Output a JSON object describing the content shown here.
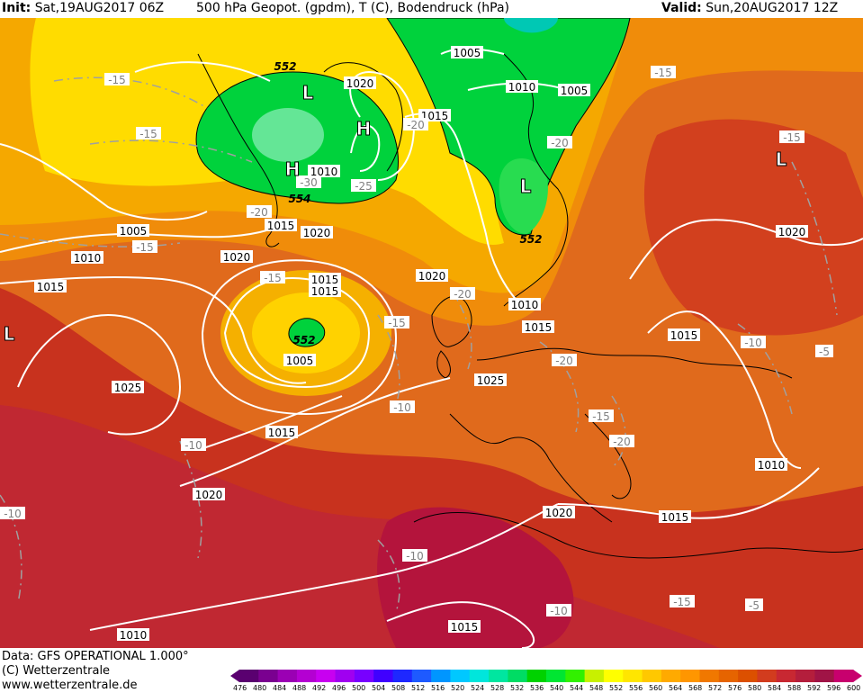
{
  "header": {
    "init_label": "Init:",
    "init_value": "Sat,19AUG2017 06Z",
    "title": "500 hPa Geopot. (gpdm), T (C), Bodendruck (hPa)",
    "valid_label": "Valid:",
    "valid_value": "Sun,20AUG2017 12Z"
  },
  "footer": {
    "data_line": "Data: GFS OPERATIONAL 1.000°",
    "copyright": "(C) Wetterzentrale",
    "website": "www.wetterzentrale.de"
  },
  "colorbar": {
    "labels": [
      "476",
      "480",
      "484",
      "488",
      "492",
      "496",
      "500",
      "504",
      "508",
      "512",
      "516",
      "520",
      "524",
      "528",
      "532",
      "536",
      "540",
      "544",
      "548",
      "552",
      "556",
      "560",
      "564",
      "568",
      "572",
      "576",
      "580",
      "584",
      "588",
      "592",
      "596",
      "600"
    ],
    "colors": [
      "#5a0070",
      "#7a0090",
      "#9b00b4",
      "#b400d2",
      "#c800f0",
      "#a000f0",
      "#7800ff",
      "#4000ff",
      "#1e28ff",
      "#1e5aff",
      "#0096ff",
      "#00c8ff",
      "#00e6dc",
      "#00e6a0",
      "#00dc64",
      "#00d200",
      "#00e632",
      "#32f000",
      "#c8f000",
      "#ffff00",
      "#ffe600",
      "#ffc800",
      "#ffaa00",
      "#ff9600",
      "#f07800",
      "#e66400",
      "#dc5000",
      "#d23c1e",
      "#c82832",
      "#b41e3c",
      "#a01446",
      "#c8006e"
    ]
  },
  "map": {
    "pressure_labels": [
      "1005",
      "1010",
      "1005",
      "1020",
      "1015",
      "1010",
      "1005",
      "1015",
      "1020",
      "1010",
      "1015",
      "1025",
      "1015",
      "1020",
      "1020",
      "1015",
      "1010",
      "1005",
      "1015",
      "1025",
      "1010",
      "1015",
      "1020",
      "1015",
      "1020",
      "1015",
      "1015",
      "1010",
      "1020"
    ],
    "temperature_labels": [
      "-15",
      "-15",
      "-20",
      "-30",
      "-25",
      "-20",
      "-15",
      "-20",
      "-15",
      "-20",
      "-15",
      "-15",
      "-15",
      "-20",
      "-10",
      "-20",
      "-15",
      "-10",
      "-10",
      "-10",
      "-5",
      "-10",
      "-5",
      "-10",
      "-15"
    ],
    "geopotential_labels": [
      "552",
      "554",
      "552",
      "552"
    ],
    "pressure_centers": [
      "L",
      "H",
      "H",
      "L",
      "L",
      "L"
    ]
  }
}
